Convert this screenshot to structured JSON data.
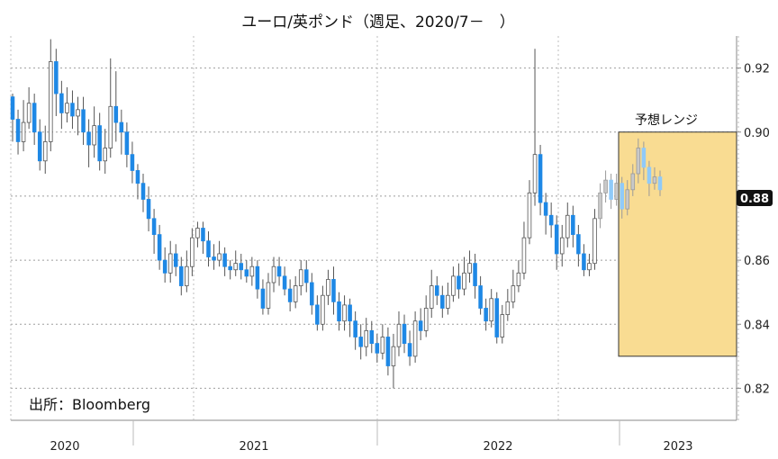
{
  "chart_data": {
    "type": "candlestick",
    "title": "ユーロ/英ポンド（週足、2020/7－　）",
    "source": "出所：Bloomberg",
    "ylim": [
      0.81,
      0.93
    ],
    "y_ticks": [
      {
        "value": 0.92,
        "label": "0.92"
      },
      {
        "value": 0.9,
        "label": "0.90"
      },
      {
        "value": 0.88,
        "label": "0.88"
      },
      {
        "value": 0.86,
        "label": "0.86"
      },
      {
        "value": 0.84,
        "label": "0.84"
      },
      {
        "value": 0.82,
        "label": "0.82"
      }
    ],
    "x_labels": [
      "2020",
      "2021",
      "2022",
      "2023"
    ],
    "last_value_label": "0.88",
    "forecast_range": {
      "label": "予想レンジ",
      "low": 0.83,
      "high": 0.9
    },
    "up_color": "#ffffff",
    "down_color": "#1e88e5",
    "forecast_up_color": "#c9c9c9",
    "forecast_down_color": "#90caf9",
    "range_fill": "#f9dc92",
    "range_border": "#333333",
    "candles": [
      [
        0.911,
        0.904,
        0.912,
        0.897
      ],
      [
        0.904,
        0.897,
        0.907,
        0.893
      ],
      [
        0.897,
        0.903,
        0.91,
        0.894
      ],
      [
        0.903,
        0.909,
        0.914,
        0.901
      ],
      [
        0.909,
        0.9,
        0.912,
        0.896
      ],
      [
        0.9,
        0.891,
        0.904,
        0.888
      ],
      [
        0.891,
        0.897,
        0.902,
        0.887
      ],
      [
        0.897,
        0.922,
        0.929,
        0.894
      ],
      [
        0.922,
        0.912,
        0.926,
        0.905
      ],
      [
        0.912,
        0.906,
        0.916,
        0.901
      ],
      [
        0.906,
        0.909,
        0.914,
        0.903
      ],
      [
        0.909,
        0.905,
        0.913,
        0.901
      ],
      [
        0.905,
        0.907,
        0.911,
        0.899
      ],
      [
        0.907,
        0.9,
        0.911,
        0.896
      ],
      [
        0.9,
        0.896,
        0.904,
        0.889
      ],
      [
        0.896,
        0.902,
        0.908,
        0.892
      ],
      [
        0.902,
        0.891,
        0.906,
        0.888
      ],
      [
        0.891,
        0.895,
        0.901,
        0.887
      ],
      [
        0.895,
        0.908,
        0.923,
        0.892
      ],
      [
        0.908,
        0.903,
        0.919,
        0.897
      ],
      [
        0.903,
        0.9,
        0.907,
        0.893
      ],
      [
        0.9,
        0.893,
        0.903,
        0.889
      ],
      [
        0.893,
        0.888,
        0.897,
        0.884
      ],
      [
        0.888,
        0.884,
        0.89,
        0.879
      ],
      [
        0.884,
        0.879,
        0.887,
        0.875
      ],
      [
        0.879,
        0.873,
        0.883,
        0.869
      ],
      [
        0.873,
        0.868,
        0.876,
        0.862
      ],
      [
        0.868,
        0.86,
        0.871,
        0.857
      ],
      [
        0.86,
        0.856,
        0.864,
        0.853
      ],
      [
        0.856,
        0.862,
        0.866,
        0.853
      ],
      [
        0.862,
        0.858,
        0.865,
        0.855
      ],
      [
        0.858,
        0.852,
        0.861,
        0.849
      ],
      [
        0.852,
        0.858,
        0.863,
        0.85
      ],
      [
        0.858,
        0.867,
        0.87,
        0.855
      ],
      [
        0.867,
        0.87,
        0.872,
        0.864
      ],
      [
        0.87,
        0.866,
        0.872,
        0.862
      ],
      [
        0.866,
        0.861,
        0.869,
        0.858
      ],
      [
        0.861,
        0.86,
        0.865,
        0.857
      ],
      [
        0.86,
        0.862,
        0.866,
        0.858
      ],
      [
        0.862,
        0.858,
        0.864,
        0.855
      ],
      [
        0.858,
        0.857,
        0.86,
        0.854
      ],
      [
        0.857,
        0.859,
        0.863,
        0.855
      ],
      [
        0.859,
        0.857,
        0.862,
        0.854
      ],
      [
        0.857,
        0.855,
        0.86,
        0.853
      ],
      [
        0.855,
        0.858,
        0.861,
        0.852
      ],
      [
        0.858,
        0.851,
        0.86,
        0.848
      ],
      [
        0.851,
        0.845,
        0.854,
        0.843
      ],
      [
        0.845,
        0.853,
        0.856,
        0.843
      ],
      [
        0.853,
        0.858,
        0.861,
        0.85
      ],
      [
        0.858,
        0.855,
        0.861,
        0.852
      ],
      [
        0.855,
        0.851,
        0.858,
        0.849
      ],
      [
        0.851,
        0.847,
        0.854,
        0.844
      ],
      [
        0.847,
        0.852,
        0.855,
        0.845
      ],
      [
        0.852,
        0.857,
        0.86,
        0.849
      ],
      [
        0.857,
        0.853,
        0.86,
        0.85
      ],
      [
        0.853,
        0.846,
        0.856,
        0.843
      ],
      [
        0.846,
        0.84,
        0.849,
        0.838
      ],
      [
        0.84,
        0.849,
        0.852,
        0.838
      ],
      [
        0.849,
        0.854,
        0.857,
        0.846
      ],
      [
        0.854,
        0.847,
        0.858,
        0.843
      ],
      [
        0.847,
        0.841,
        0.85,
        0.838
      ],
      [
        0.841,
        0.846,
        0.849,
        0.838
      ],
      [
        0.846,
        0.841,
        0.848,
        0.836
      ],
      [
        0.841,
        0.836,
        0.844,
        0.832
      ],
      [
        0.836,
        0.833,
        0.84,
        0.829
      ],
      [
        0.833,
        0.838,
        0.842,
        0.83
      ],
      [
        0.838,
        0.834,
        0.841,
        0.831
      ],
      [
        0.834,
        0.831,
        0.837,
        0.828
      ],
      [
        0.831,
        0.836,
        0.84,
        0.829
      ],
      [
        0.836,
        0.827,
        0.839,
        0.824
      ],
      [
        0.827,
        0.833,
        0.837,
        0.82
      ],
      [
        0.833,
        0.84,
        0.844,
        0.83
      ],
      [
        0.84,
        0.834,
        0.843,
        0.831
      ],
      [
        0.834,
        0.83,
        0.838,
        0.827
      ],
      [
        0.83,
        0.841,
        0.844,
        0.828
      ],
      [
        0.841,
        0.838,
        0.845,
        0.835
      ],
      [
        0.838,
        0.845,
        0.849,
        0.836
      ],
      [
        0.845,
        0.852,
        0.857,
        0.842
      ],
      [
        0.852,
        0.849,
        0.855,
        0.846
      ],
      [
        0.849,
        0.845,
        0.852,
        0.842
      ],
      [
        0.845,
        0.849,
        0.853,
        0.843
      ],
      [
        0.849,
        0.855,
        0.858,
        0.847
      ],
      [
        0.855,
        0.851,
        0.859,
        0.848
      ],
      [
        0.851,
        0.856,
        0.861,
        0.849
      ],
      [
        0.856,
        0.859,
        0.863,
        0.853
      ],
      [
        0.859,
        0.852,
        0.862,
        0.848
      ],
      [
        0.852,
        0.845,
        0.855,
        0.843
      ],
      [
        0.845,
        0.841,
        0.848,
        0.838
      ],
      [
        0.841,
        0.848,
        0.851,
        0.839
      ],
      [
        0.848,
        0.836,
        0.85,
        0.834
      ],
      [
        0.836,
        0.843,
        0.846,
        0.834
      ],
      [
        0.843,
        0.847,
        0.851,
        0.841
      ],
      [
        0.847,
        0.852,
        0.857,
        0.845
      ],
      [
        0.852,
        0.856,
        0.86,
        0.85
      ],
      [
        0.856,
        0.867,
        0.872,
        0.854
      ],
      [
        0.867,
        0.881,
        0.885,
        0.865
      ],
      [
        0.881,
        0.893,
        0.926,
        0.877
      ],
      [
        0.893,
        0.878,
        0.896,
        0.874
      ],
      [
        0.878,
        0.874,
        0.881,
        0.868
      ],
      [
        0.874,
        0.871,
        0.878,
        0.867
      ],
      [
        0.871,
        0.862,
        0.874,
        0.857
      ],
      [
        0.862,
        0.867,
        0.871,
        0.858
      ],
      [
        0.867,
        0.874,
        0.878,
        0.864
      ],
      [
        0.874,
        0.868,
        0.877,
        0.864
      ],
      [
        0.868,
        0.862,
        0.871,
        0.858
      ],
      [
        0.862,
        0.857,
        0.865,
        0.855
      ],
      [
        0.857,
        0.859,
        0.862,
        0.855
      ],
      [
        0.859,
        0.873,
        0.876,
        0.857
      ],
      [
        0.873,
        0.881,
        0.884,
        0.87
      ],
      [
        0.881,
        0.885,
        0.888,
        0.878
      ],
      [
        0.885,
        0.879,
        0.887,
        0.876
      ],
      [
        0.879,
        0.884,
        0.887,
        0.877
      ],
      [
        0.884,
        0.876,
        0.886,
        0.873
      ],
      [
        0.876,
        0.882,
        0.885,
        0.874
      ],
      [
        0.882,
        0.887,
        0.89,
        0.88
      ],
      [
        0.887,
        0.895,
        0.898,
        0.884
      ],
      [
        0.895,
        0.889,
        0.897,
        0.885
      ],
      [
        0.889,
        0.884,
        0.891,
        0.88
      ],
      [
        0.884,
        0.886,
        0.889,
        0.882
      ],
      [
        0.886,
        0.882,
        0.888,
        0.88
      ]
    ]
  }
}
